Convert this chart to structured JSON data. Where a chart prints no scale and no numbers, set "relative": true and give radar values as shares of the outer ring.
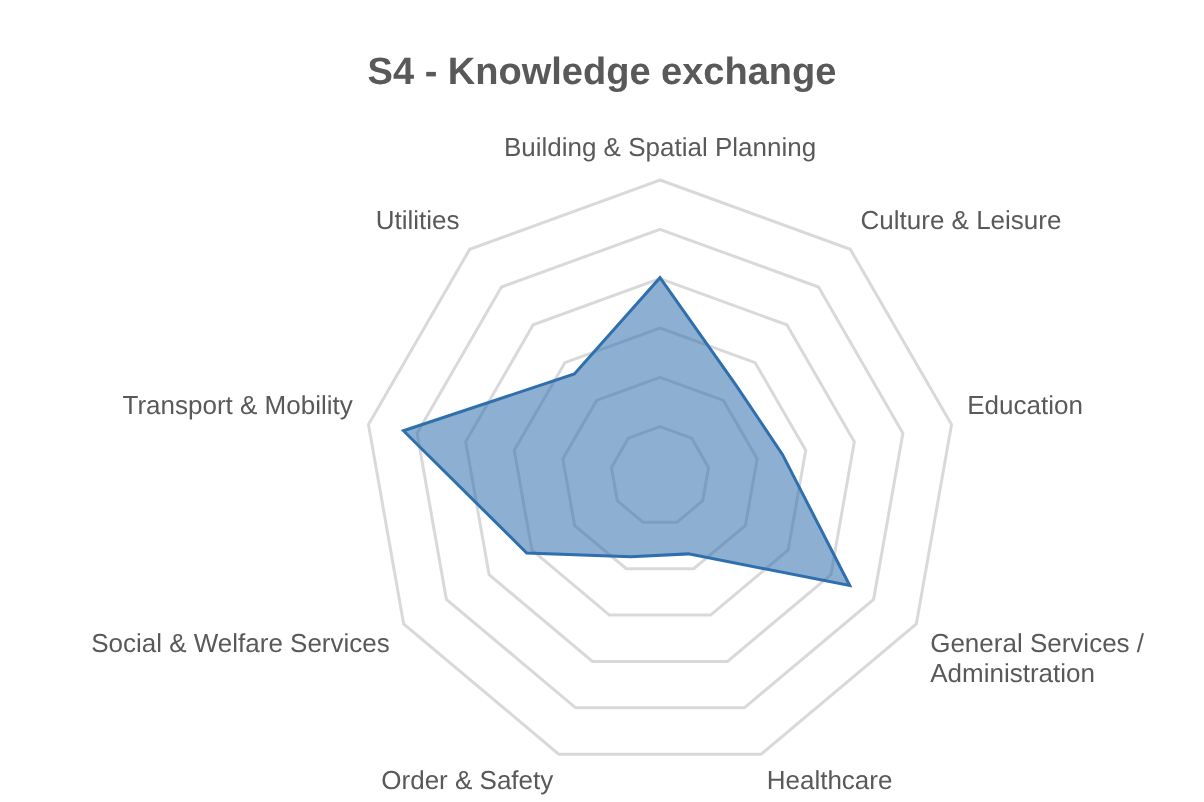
{
  "chart_data": {
    "type": "radar",
    "title": "S4 - Knowledge exchange",
    "relative": true,
    "grid": true,
    "categories": [
      "Building & Spatial Planning",
      "Culture & Leisure",
      "Education",
      "General Services / Administration",
      "Healthcare",
      "Order & Safety",
      "Social & Welfare Services",
      "Transport & Mobility",
      "Utilities"
    ],
    "series": [
      {
        "color": "#2f6fad",
        "values": [
          0.67,
          0.4,
          0.42,
          0.74,
          0.28,
          0.29,
          0.52,
          0.88,
          0.45
        ]
      }
    ]
  }
}
